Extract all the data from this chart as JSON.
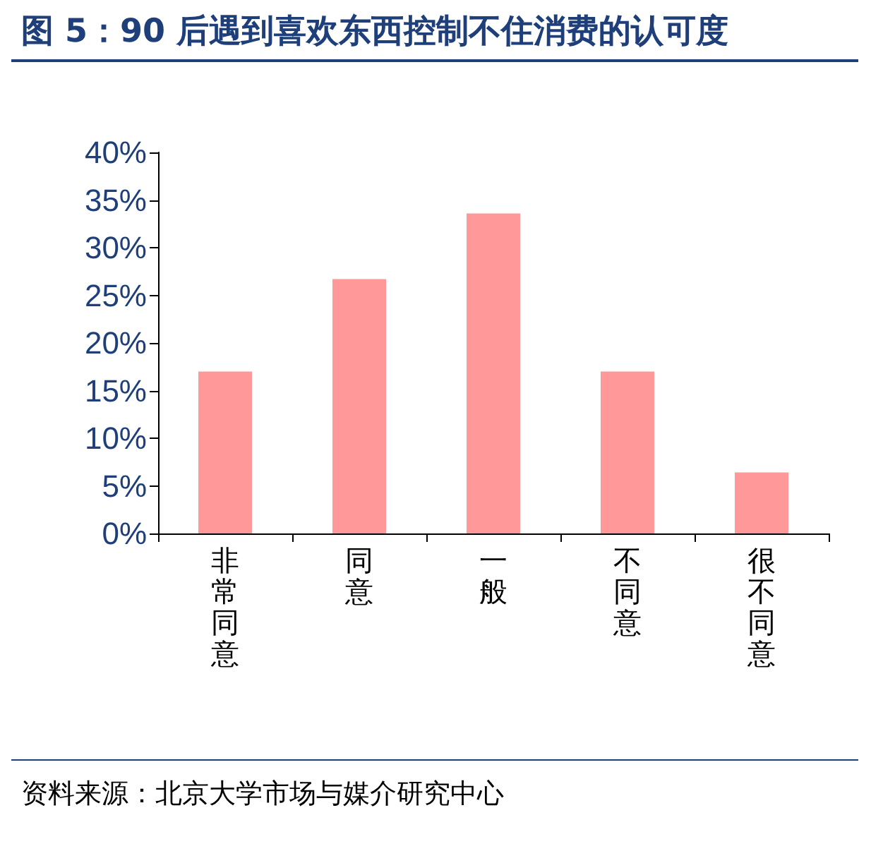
{
  "chart_data": {
    "type": "bar",
    "title": "图 5：90 后遇到喜欢东西控制不住消费的认可度",
    "categories": [
      "非常同意",
      "同意",
      "一般",
      "不同意",
      "很不同意"
    ],
    "values": [
      17.0,
      26.7,
      33.6,
      17.0,
      6.4
    ],
    "color": "#ff9999",
    "ylim": [
      0,
      40
    ],
    "yticks": [
      {
        "value": 0,
        "label": "0%"
      },
      {
        "value": 5,
        "label": "5%"
      },
      {
        "value": 10,
        "label": "10%"
      },
      {
        "value": 15,
        "label": "15%"
      },
      {
        "value": 20,
        "label": "20%"
      },
      {
        "value": 25,
        "label": "25%"
      },
      {
        "value": 30,
        "label": "30%"
      },
      {
        "value": 35,
        "label": "35%"
      },
      {
        "value": 40,
        "label": "40%"
      }
    ],
    "grid": false,
    "annotations": [
      "资料来源：北京大学市场与媒介研究中心"
    ]
  }
}
